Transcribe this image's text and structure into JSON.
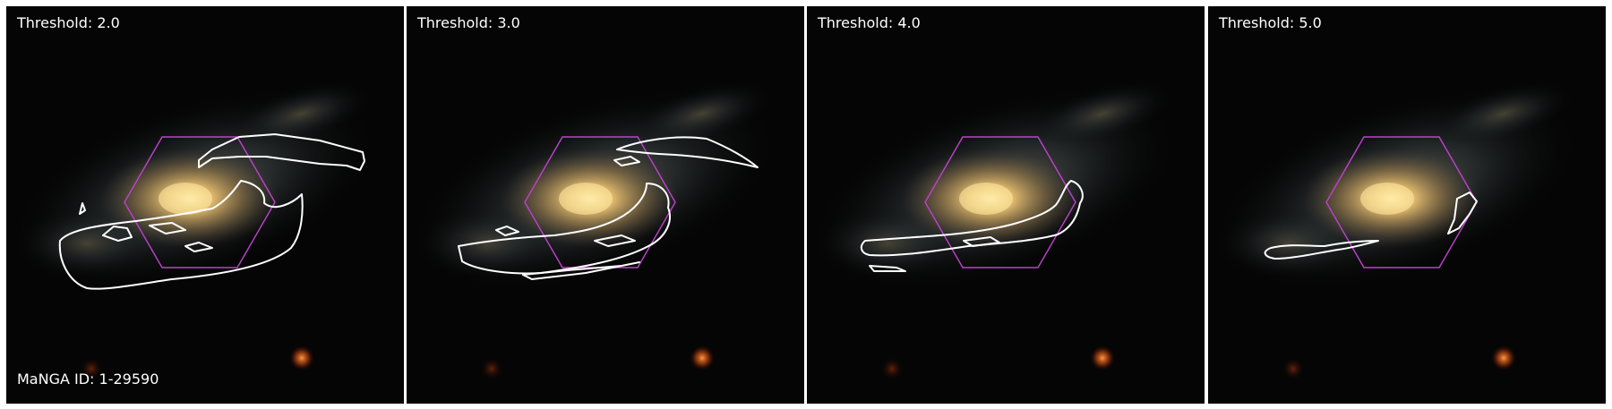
{
  "panels": [
    {
      "threshold_label": "Threshold: 2.0",
      "id_label": "MaNGA ID: 1-29590"
    },
    {
      "threshold_label": "Threshold: 3.0"
    },
    {
      "threshold_label": "Threshold: 4.0"
    },
    {
      "threshold_label": "Threshold: 5.0"
    }
  ],
  "colors": {
    "background": "#050505",
    "hexagon": "#c040d0",
    "contour": "#ffffff",
    "label": "#ffffff"
  }
}
